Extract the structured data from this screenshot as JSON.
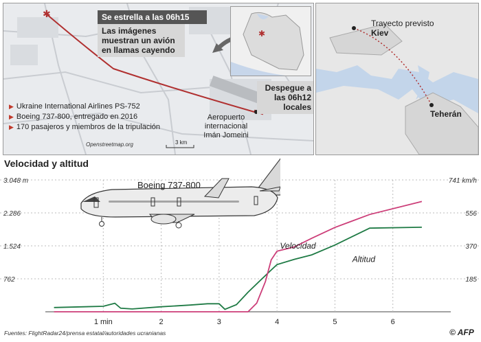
{
  "map": {
    "crash_label": "Se estrella a las 06h15",
    "flames_note": "Las imágenes muestran un avión en llamas cayendo",
    "takeoff_note": "Despegue a las 06h12 locales",
    "airport": "Aeropuerto internacional Imán Jomeini",
    "scale": "3 km",
    "credit": "Openstreetmap.org",
    "facts": [
      "Ukraine International Airlines PS-752",
      "Boeing 737-800, entregado en 2016",
      "170 pasajeros y miembros de la tripulación"
    ]
  },
  "region_map": {
    "route_label": "Trayecto previsto",
    "kiev": "Kiev",
    "tehran": "Teherán"
  },
  "chart_title": "Velocidad y altitud",
  "plane_label": "Boeing 737-800",
  "footer": {
    "source": "Fuentes: FlightRadar24/prensa estatal/autoridades ucranianas",
    "logo": "AFP"
  },
  "colors": {
    "speed": "#1e7a44",
    "altitude": "#cc3d78",
    "route": "#b03030"
  },
  "chart_data": {
    "type": "line",
    "title": "Velocidad y altitud",
    "x_ticks": [
      "1 min",
      "2",
      "3",
      "4",
      "5",
      "6"
    ],
    "x_tick_values": [
      1,
      2,
      3,
      4,
      5,
      6
    ],
    "xlim": [
      0,
      7
    ],
    "left_axis": {
      "ticks": [
        "3.048 m",
        "2.286",
        "1.524",
        "762"
      ],
      "values": [
        3048,
        2286,
        1524,
        762
      ],
      "ylim": [
        0,
        3048
      ]
    },
    "right_axis": {
      "ticks": [
        "741 km/h",
        "556",
        "370",
        "185"
      ],
      "values": [
        741,
        556,
        370,
        185
      ],
      "ylim": [
        0,
        741
      ]
    },
    "series": [
      {
        "name": "Velocidad",
        "axis": "right",
        "x": [
          0.15,
          1.0,
          1.2,
          1.3,
          1.5,
          2.0,
          2.5,
          2.8,
          3.0,
          3.1,
          3.3,
          3.5,
          3.9,
          4.0,
          4.3,
          4.6,
          5.0,
          5.6,
          6.5
        ],
        "y": [
          24,
          31,
          48,
          20,
          16,
          28,
          38,
          45,
          45,
          14,
          40,
          110,
          235,
          265,
          295,
          320,
          375,
          470,
          475
        ]
      },
      {
        "name": "Altitud",
        "axis": "left",
        "x": [
          0.15,
          3.0,
          3.5,
          3.65,
          3.8,
          3.9,
          4.0,
          4.3,
          4.6,
          5.0,
          5.6,
          6.5
        ],
        "y": [
          0,
          0,
          0,
          200,
          700,
          1200,
          1400,
          1500,
          1700,
          1950,
          2250,
          2550
        ]
      }
    ]
  }
}
